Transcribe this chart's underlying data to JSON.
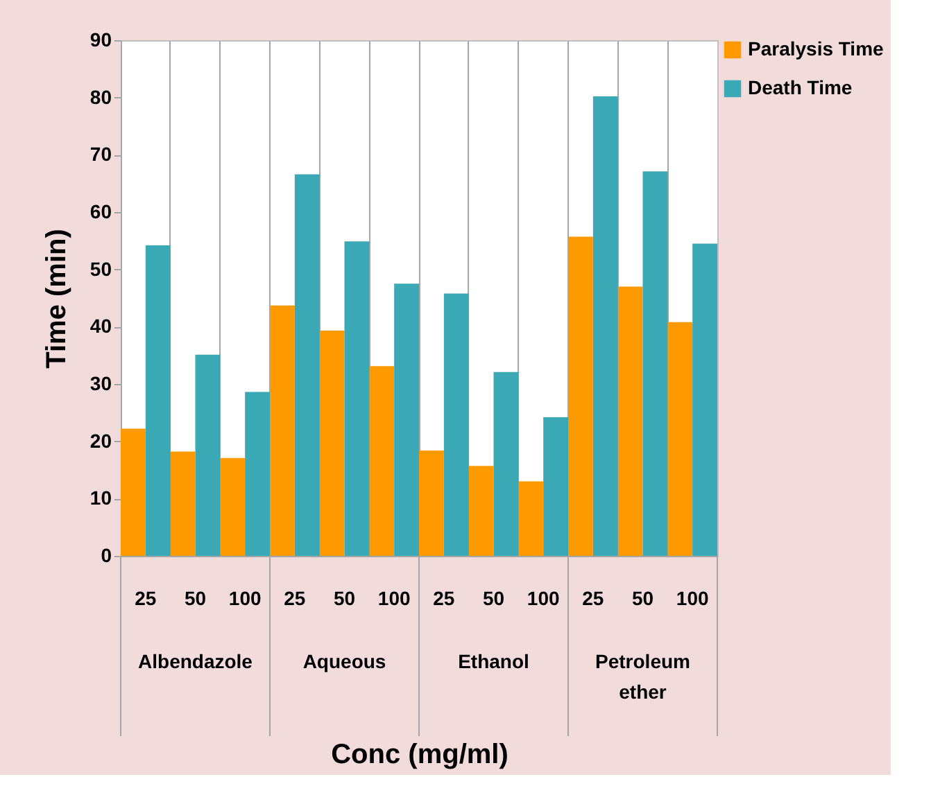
{
  "chart_data": {
    "type": "bar",
    "categories": [
      "25",
      "50",
      "100",
      "25",
      "50",
      "100",
      "25",
      "50",
      "100",
      "25",
      "50",
      "100"
    ],
    "series": [
      {
        "name": "Paralysis Time",
        "color": "#ff9900",
        "values": [
          22.2,
          18.2,
          17.1,
          43.7,
          39.3,
          33.1,
          18.4,
          15.7,
          13.0,
          55.7,
          47.0,
          40.8
        ]
      },
      {
        "name": "Death Time",
        "color": "#3ba8b6",
        "values": [
          54.2,
          35.1,
          28.6,
          66.6,
          54.9,
          47.5,
          45.8,
          32.1,
          24.2,
          80.2,
          67.1,
          54.5
        ]
      }
    ],
    "annotations": [
      "Albendazole",
      "Aqueous",
      "Ethanol",
      "Petroleum ether"
    ],
    "xlabel": "Conc (mg/ml)",
    "ylabel": "Time (min)",
    "ylim": [
      0,
      90
    ],
    "yticks": [
      0,
      10,
      20,
      30,
      40,
      50,
      60,
      70,
      80,
      90
    ],
    "grid": "x",
    "legend": "right"
  }
}
